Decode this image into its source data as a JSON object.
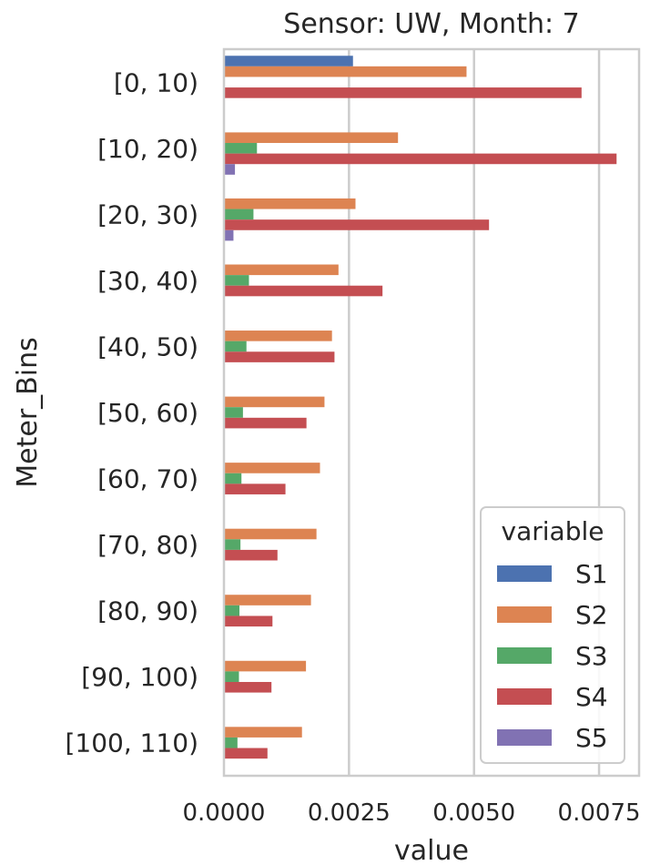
{
  "chart_data": {
    "type": "bar",
    "orientation": "horizontal",
    "title": "Sensor: UW, Month: 7",
    "xlabel": "value",
    "ylabel": "Meter_Bins",
    "xlim": [
      0,
      0.0083
    ],
    "xticks": [
      0,
      0.0025,
      0.005,
      0.0075
    ],
    "xtick_labels": [
      "0.0000",
      "0.0025",
      "0.0050",
      "0.0075"
    ],
    "grid": "x",
    "categories": [
      "[0, 10)",
      "[10, 20)",
      "[20, 30)",
      "[30, 40)",
      "[40, 50)",
      "[50, 60)",
      "[60, 70)",
      "[70, 80)",
      "[80, 90)",
      "[90, 100)",
      "[100, 110)"
    ],
    "legend": {
      "title": "variable",
      "placement": "lower-right"
    },
    "series": [
      {
        "name": "S1",
        "color": "#4c72b0",
        "values": [
          0.00258,
          0,
          0,
          0,
          0,
          0,
          0,
          0,
          0,
          0,
          0
        ]
      },
      {
        "name": "S2",
        "color": "#dd8452",
        "values": [
          0.00485,
          0.00348,
          0.00263,
          0.00229,
          0.00216,
          0.00201,
          0.00192,
          0.00185,
          0.00174,
          0.00164,
          0.00156
        ]
      },
      {
        "name": "S3",
        "color": "#55a868",
        "values": [
          0,
          0.00066,
          0.00059,
          0.0005,
          0.00045,
          0.00038,
          0.00035,
          0.00033,
          0.00031,
          0.0003,
          0.00027
        ]
      },
      {
        "name": "S4",
        "color": "#c44e52",
        "values": [
          0.00715,
          0.00785,
          0.0053,
          0.00317,
          0.00221,
          0.00165,
          0.00123,
          0.00107,
          0.00097,
          0.00095,
          0.00087
        ]
      },
      {
        "name": "S5",
        "color": "#8172b3",
        "values": [
          0,
          0.00022,
          0.00019,
          0,
          0,
          0,
          0,
          0,
          0,
          0,
          0
        ]
      }
    ]
  }
}
